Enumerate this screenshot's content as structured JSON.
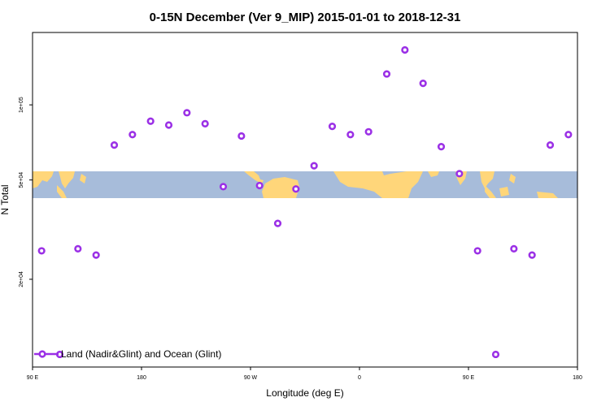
{
  "chart_data": {
    "type": "scatter",
    "title": "0-15N December (Ver 9_MIP)   2015-01-01 to 2018-12-31",
    "xlabel": "Longitude (deg E)",
    "ylabel": "N Total",
    "x_ticks": [
      {
        "value": 90,
        "label": "90 E"
      },
      {
        "value": 180,
        "label": "180"
      },
      {
        "value": 270,
        "label": "90 W"
      },
      {
        "value": 360,
        "label": "0"
      },
      {
        "value": 450,
        "label": "90 E"
      },
      {
        "value": 540,
        "label": "180"
      }
    ],
    "y_ticks": [
      {
        "value": 20000,
        "label": "2e+04"
      },
      {
        "value": 50000,
        "label": "5e+04"
      },
      {
        "value": 100000,
        "label": "1e+05"
      }
    ],
    "y_scale": "log",
    "xlim": [
      90,
      540
    ],
    "ylim": [
      8900,
      195000
    ],
    "legend": {
      "label": "Land (Nadir&Glint) and Ocean (Glint)",
      "position": "bottom-left"
    },
    "colors": {
      "series": "#9b30e6",
      "ocean_band": "#a7bcda",
      "land": "#ffd67a"
    },
    "series": [
      {
        "name": "Land (Nadir&Glint) and Ocean (Glint)",
        "points": [
          {
            "x": 97.5,
            "y": 26000
          },
          {
            "x": 112.5,
            "y": 10000
          },
          {
            "x": 127.5,
            "y": 26500
          },
          {
            "x": 142.5,
            "y": 25000
          },
          {
            "x": 157.5,
            "y": 69000
          },
          {
            "x": 172.5,
            "y": 76000
          },
          {
            "x": 187.5,
            "y": 86000
          },
          {
            "x": 202.5,
            "y": 83000
          },
          {
            "x": 217.5,
            "y": 93000
          },
          {
            "x": 232.5,
            "y": 84000
          },
          {
            "x": 247.5,
            "y": 47000
          },
          {
            "x": 262.5,
            "y": 75000
          },
          {
            "x": 277.5,
            "y": 47500
          },
          {
            "x": 292.5,
            "y": 33500
          },
          {
            "x": 307.5,
            "y": 46000
          },
          {
            "x": 322.5,
            "y": 57000
          },
          {
            "x": 337.5,
            "y": 82000
          },
          {
            "x": 352.5,
            "y": 76000
          },
          {
            "x": 367.5,
            "y": 78000
          },
          {
            "x": 382.5,
            "y": 133000
          },
          {
            "x": 397.5,
            "y": 166000
          },
          {
            "x": 412.5,
            "y": 122000
          },
          {
            "x": 427.5,
            "y": 68000
          },
          {
            "x": 442.5,
            "y": 53000
          },
          {
            "x": 457.5,
            "y": 26000
          },
          {
            "x": 472.5,
            "y": 10000
          },
          {
            "x": 487.5,
            "y": 26500
          },
          {
            "x": 502.5,
            "y": 25000
          },
          {
            "x": 517.5,
            "y": 69000
          },
          {
            "x": 532.5,
            "y": 76000
          }
        ]
      }
    ]
  }
}
